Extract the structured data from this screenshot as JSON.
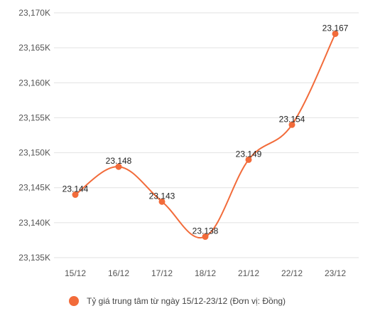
{
  "chart_data": {
    "type": "line",
    "categories": [
      "15/12",
      "16/12",
      "17/12",
      "18/12",
      "21/12",
      "22/12",
      "23/12"
    ],
    "series": [
      {
        "name": "Tỷ giá trung tâm từ ngày 15/12-23/12 (Đơn vị: Đồng)",
        "values": [
          23144,
          23148,
          23143,
          23138,
          23149,
          23154,
          23167
        ],
        "labels": [
          "23.144",
          "23.148",
          "23.143",
          "23.138",
          "23.149",
          "23.154",
          "23.167"
        ]
      }
    ],
    "y_ticks": [
      {
        "value": 23135,
        "label": "23,135K"
      },
      {
        "value": 23140,
        "label": "23,140K"
      },
      {
        "value": 23145,
        "label": "23,145K"
      },
      {
        "value": 23150,
        "label": "23,150K"
      },
      {
        "value": 23155,
        "label": "23,155K"
      },
      {
        "value": 23160,
        "label": "23,160K"
      },
      {
        "value": 23165,
        "label": "23,165K"
      },
      {
        "value": 23170,
        "label": "23,170K"
      }
    ],
    "ylim": [
      23135,
      23170
    ],
    "grid": true,
    "legend_position": "bottom",
    "colors": {
      "series": "#f26b3a",
      "grid": "#e2e2e2"
    }
  }
}
